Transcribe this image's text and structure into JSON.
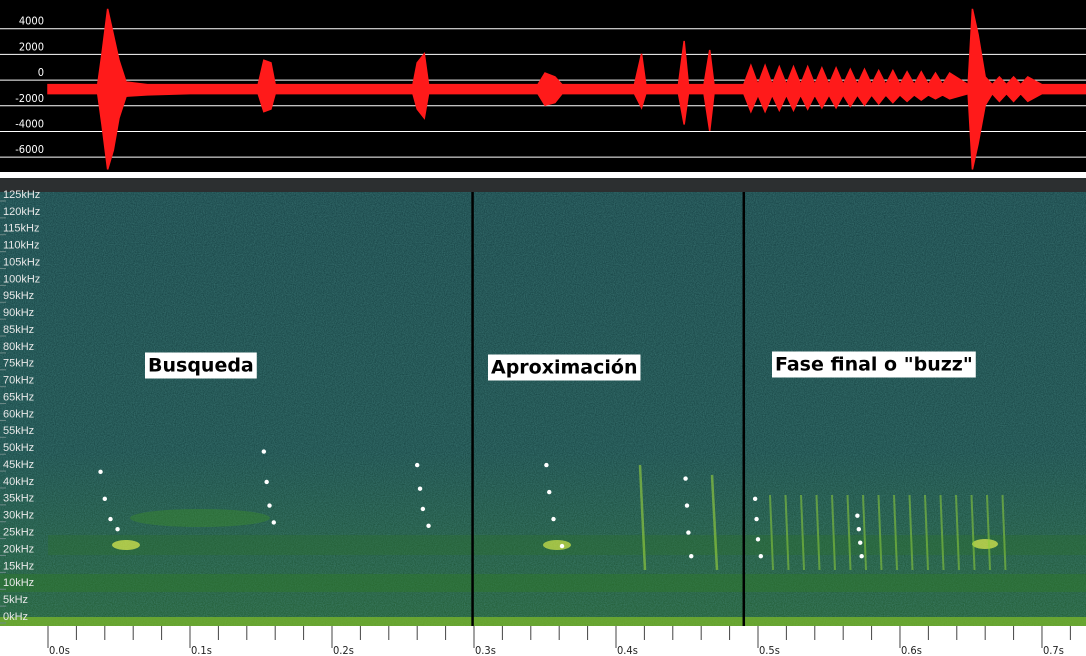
{
  "chart_data": [
    {
      "type": "waveform",
      "x": [
        0.0,
        0.035,
        0.038,
        0.042,
        0.046,
        0.05,
        0.055,
        0.07,
        0.1,
        0.148,
        0.152,
        0.157,
        0.16,
        0.2,
        0.257,
        0.26,
        0.265,
        0.268,
        0.3,
        0.345,
        0.35,
        0.357,
        0.362,
        0.413,
        0.418,
        0.421,
        0.444,
        0.448,
        0.451,
        0.462,
        0.466,
        0.469,
        0.49,
        0.495,
        0.5,
        0.505,
        0.51,
        0.515,
        0.52,
        0.525,
        0.53,
        0.535,
        0.54,
        0.545,
        0.55,
        0.555,
        0.56,
        0.565,
        0.57,
        0.575,
        0.58,
        0.585,
        0.59,
        0.595,
        0.6,
        0.605,
        0.61,
        0.615,
        0.62,
        0.625,
        0.63,
        0.635,
        0.648,
        0.651,
        0.655,
        0.66,
        0.665,
        0.67,
        0.675,
        0.68,
        0.685,
        0.69,
        0.7,
        0.731
      ],
      "series": [
        {
          "color": "#ff1a1a",
          "values": [
            -900,
            -900,
            1500,
            5000,
            3000,
            1000,
            -700,
            -900,
            -900,
            -900,
            1000,
            800,
            -900,
            -900,
            -900,
            800,
            1500,
            -900,
            -900,
            -900,
            0,
            -300,
            -900,
            -900,
            1500,
            -900,
            -900,
            2500,
            -900,
            -900,
            1800,
            -900,
            -900,
            600,
            -900,
            600,
            -900,
            500,
            -900,
            500,
            -900,
            500,
            -900,
            400,
            -900,
            400,
            -900,
            300,
            -900,
            300,
            -900,
            200,
            -900,
            200,
            -900,
            100,
            -900,
            100,
            -900,
            0,
            -900,
            0,
            -900,
            5000,
            3000,
            -300,
            -900,
            -300,
            -900,
            -300,
            -900,
            -300,
            -900,
            -900
          ]
        },
        {
          "color": "#ff1a1a",
          "values": [
            -1600,
            -1600,
            -4000,
            -7500,
            -6000,
            -3500,
            -1800,
            -1700,
            -1600,
            -1600,
            -3000,
            -2800,
            -1600,
            -1600,
            -1600,
            -2800,
            -3500,
            -1600,
            -1600,
            -1600,
            -2500,
            -2300,
            -1600,
            -1600,
            -2700,
            -1600,
            -1600,
            -4000,
            -1600,
            -1600,
            -4500,
            -1600,
            -1600,
            -3000,
            -1700,
            -3000,
            -1700,
            -2900,
            -1700,
            -2900,
            -1700,
            -2800,
            -1700,
            -2700,
            -1700,
            -2700,
            -1700,
            -2600,
            -1700,
            -2500,
            -1700,
            -2400,
            -1700,
            -2300,
            -1700,
            -2200,
            -1700,
            -2100,
            -1700,
            -2000,
            -1700,
            -2000,
            -1600,
            -7500,
            -5500,
            -2500,
            -1600,
            -2200,
            -1600,
            -2200,
            -1600,
            -2200,
            -1600,
            -1600
          ]
        }
      ],
      "xlim": [
        0,
        0.731
      ],
      "ylim": [
        -7700,
        5300
      ],
      "yticks": [
        -6000,
        -4000,
        -2000,
        0,
        2000,
        4000
      ],
      "grid": true
    },
    {
      "type": "spectrogram",
      "x": [
        0.037,
        0.04,
        0.044,
        0.049,
        0.152,
        0.154,
        0.156,
        0.159,
        0.26,
        0.262,
        0.264,
        0.268,
        0.351,
        0.353,
        0.356,
        0.362,
        0.449,
        0.45,
        0.451,
        0.453,
        0.498,
        0.499,
        0.5,
        0.502,
        0.57,
        0.571,
        0.572,
        0.573
      ],
      "values": [
        43,
        35,
        29,
        26,
        49,
        40,
        33,
        28,
        45,
        38,
        32,
        27,
        45,
        37,
        29,
        21,
        41,
        33,
        25,
        18,
        35,
        29,
        23,
        18,
        30,
        26,
        22,
        18
      ],
      "color": "#ffffff",
      "xlim": [
        0,
        0.731
      ],
      "ylim": [
        0,
        125
      ],
      "yticks": [
        {
          "value": 0,
          "label": "0kHz"
        },
        {
          "value": 5,
          "label": "5kHz"
        },
        {
          "value": 10,
          "label": "10kHz"
        },
        {
          "value": 15,
          "label": "15kHz"
        },
        {
          "value": 20,
          "label": "20kHz"
        },
        {
          "value": 25,
          "label": "25kHz"
        },
        {
          "value": 30,
          "label": "30kHz"
        },
        {
          "value": 35,
          "label": "35kHz"
        },
        {
          "value": 40,
          "label": "40kHz"
        },
        {
          "value": 45,
          "label": "45kHz"
        },
        {
          "value": 50,
          "label": "50kHz"
        },
        {
          "value": 55,
          "label": "55kHz"
        },
        {
          "value": 60,
          "label": "60kHz"
        },
        {
          "value": 65,
          "label": "65kHz"
        },
        {
          "value": 70,
          "label": "70kHz"
        },
        {
          "value": 75,
          "label": "75kHz"
        },
        {
          "value": 80,
          "label": "80kHz"
        },
        {
          "value": 85,
          "label": "85kHz"
        },
        {
          "value": 90,
          "label": "90kHz"
        },
        {
          "value": 95,
          "label": "95kHz"
        },
        {
          "value": 100,
          "label": "100kHz"
        },
        {
          "value": 105,
          "label": "105kHz"
        },
        {
          "value": 110,
          "label": "110kHz"
        },
        {
          "value": 115,
          "label": "115kHz"
        },
        {
          "value": 120,
          "label": "120kHz"
        },
        {
          "value": 125,
          "label": "125kHz"
        }
      ],
      "xticks": [
        {
          "value": 0.0,
          "label": "0.0s"
        },
        {
          "value": 0.1,
          "label": "0.1s"
        },
        {
          "value": 0.2,
          "label": "0.2s"
        },
        {
          "value": 0.3,
          "label": "0.3s"
        },
        {
          "value": 0.4,
          "label": "0.4s"
        },
        {
          "value": 0.5,
          "label": "0.5s"
        },
        {
          "value": 0.6,
          "label": "0.6s"
        },
        {
          "value": 0.7,
          "label": "0.7s"
        }
      ],
      "xminorticks": [
        0.02,
        0.04,
        0.06,
        0.08,
        0.12,
        0.14,
        0.16,
        0.18,
        0.22,
        0.24,
        0.26,
        0.28,
        0.32,
        0.34,
        0.36,
        0.38,
        0.42,
        0.44,
        0.46,
        0.48,
        0.52,
        0.54,
        0.56,
        0.58,
        0.62,
        0.64,
        0.66,
        0.68,
        0.72
      ],
      "dividers": [
        0.299,
        0.49
      ],
      "annotations": [
        "Busqueda",
        "Aproximación",
        "Fase final o \"buzz\""
      ]
    }
  ]
}
